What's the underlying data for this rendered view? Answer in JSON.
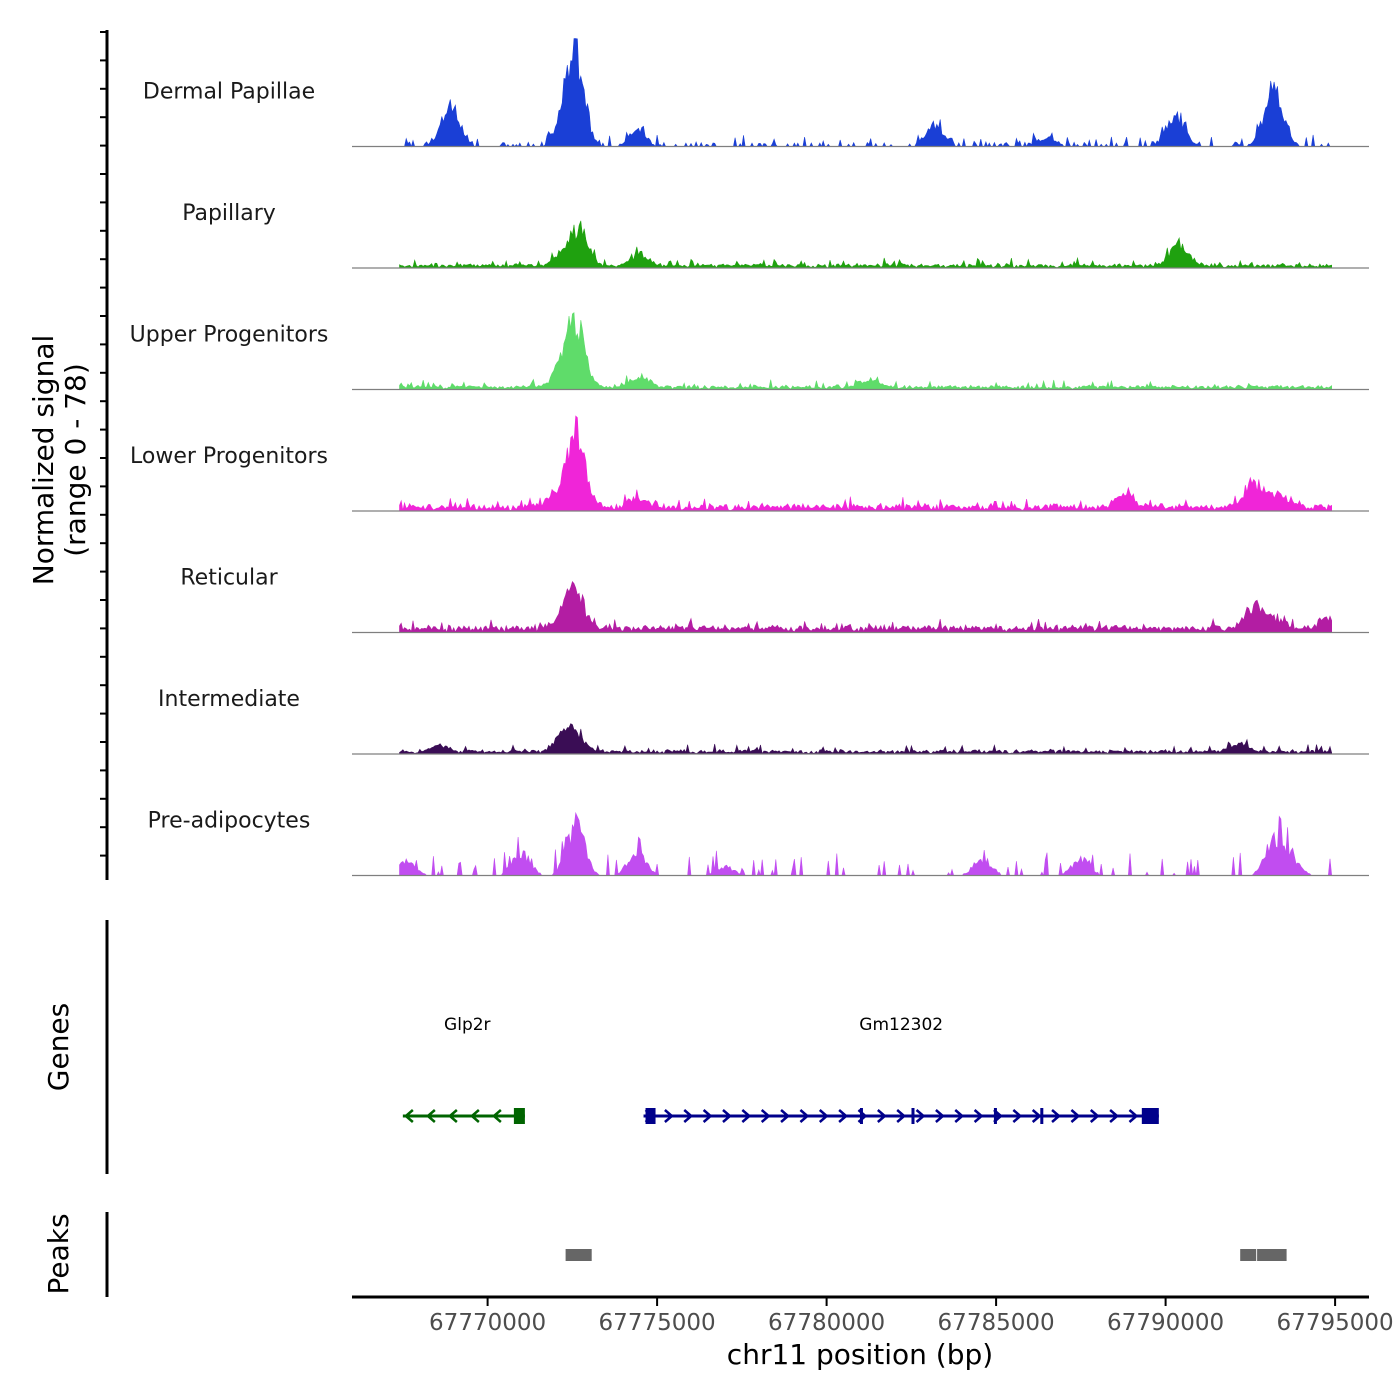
{
  "chart_data": {
    "type": "area",
    "title": "",
    "chromosome": "chr11",
    "xlabel": "chr11 position (bp)",
    "ylabel_line1": "Normalized signal",
    "ylabel_line2": "(range 0 - 78)",
    "ylim": [
      0,
      78
    ],
    "xlim": [
      67766000,
      67796000
    ],
    "xticks": [
      67770000,
      67775000,
      67780000,
      67785000,
      67790000,
      67795000
    ],
    "xtick_labels": [
      "67770000",
      "67775000",
      "67780000",
      "67785000",
      "67790000",
      "67795000"
    ],
    "signal_range": [
      67767400,
      67794900
    ],
    "tracks": [
      {
        "name": "Dermal Papillae",
        "color": "#1a3fd6",
        "baseline": 3,
        "noise": 5,
        "sparse": true,
        "peaks": [
          [
            67768800,
            17
          ],
          [
            67769000,
            20
          ],
          [
            67772300,
            28
          ],
          [
            67772600,
            74
          ],
          [
            67774400,
            12
          ],
          [
            67783200,
            20
          ],
          [
            67786500,
            8
          ],
          [
            67790300,
            30
          ],
          [
            67793100,
            30
          ],
          [
            67793300,
            25
          ]
        ]
      },
      {
        "name": "Papillary",
        "color": "#1fa10f",
        "baseline": 2,
        "noise": 4,
        "sparse": false,
        "peaks": [
          [
            67772200,
            10
          ],
          [
            67772700,
            32
          ],
          [
            67774500,
            12
          ],
          [
            67790400,
            20
          ]
        ]
      },
      {
        "name": "Upper Progenitors",
        "color": "#5fdc6a",
        "baseline": 2,
        "noise": 4,
        "sparse": false,
        "peaks": [
          [
            67772200,
            18
          ],
          [
            67772600,
            56
          ],
          [
            67774500,
            10
          ],
          [
            67781300,
            7
          ]
        ]
      },
      {
        "name": "Lower Progenitors",
        "color": "#f025d8",
        "baseline": 4,
        "noise": 5,
        "sparse": false,
        "peaks": [
          [
            67772000,
            10
          ],
          [
            67772600,
            70
          ],
          [
            67774400,
            9
          ],
          [
            67788800,
            14
          ],
          [
            67792600,
            22
          ],
          [
            67793300,
            12
          ]
        ]
      },
      {
        "name": "Reticular",
        "color": "#b31da3",
        "baseline": 4,
        "noise": 5,
        "sparse": false,
        "peaks": [
          [
            67772200,
            10
          ],
          [
            67772600,
            33
          ],
          [
            67792600,
            20
          ],
          [
            67793200,
            10
          ],
          [
            67794800,
            10
          ]
        ]
      },
      {
        "name": "Intermediate",
        "color": "#3a0d55",
        "baseline": 2,
        "noise": 4,
        "sparse": false,
        "peaks": [
          [
            67768600,
            6
          ],
          [
            67772200,
            12
          ],
          [
            67772600,
            17
          ],
          [
            67792200,
            7
          ]
        ]
      },
      {
        "name": "Pre-adipocytes",
        "color": "#c14df0",
        "baseline": 0,
        "noise": 12,
        "sparse": true,
        "peaks": [
          [
            67767600,
            12
          ],
          [
            67771000,
            20
          ],
          [
            67772600,
            46
          ],
          [
            67774400,
            22
          ],
          [
            67777000,
            8
          ],
          [
            67784600,
            15
          ],
          [
            67787500,
            15
          ],
          [
            67793200,
            30
          ],
          [
            67793700,
            15
          ]
        ]
      }
    ],
    "genes": [
      {
        "name": "Glp2r",
        "strand": "-",
        "start": 67767500,
        "end": 67771100,
        "color": "#006400",
        "label_x": 67769400
      },
      {
        "name": "Gm12302",
        "strand": "+",
        "start": 67774600,
        "end": 67789800,
        "color": "#00008b",
        "label_x": 67782200
      }
    ],
    "gene_track_title": "Genes",
    "peaks_track_title": "Peaks",
    "peaks": [
      [
        67772300,
        67773100
      ],
      [
        67792200,
        67792700
      ],
      [
        67792700,
        67793600
      ]
    ],
    "peak_color": "#666666"
  }
}
